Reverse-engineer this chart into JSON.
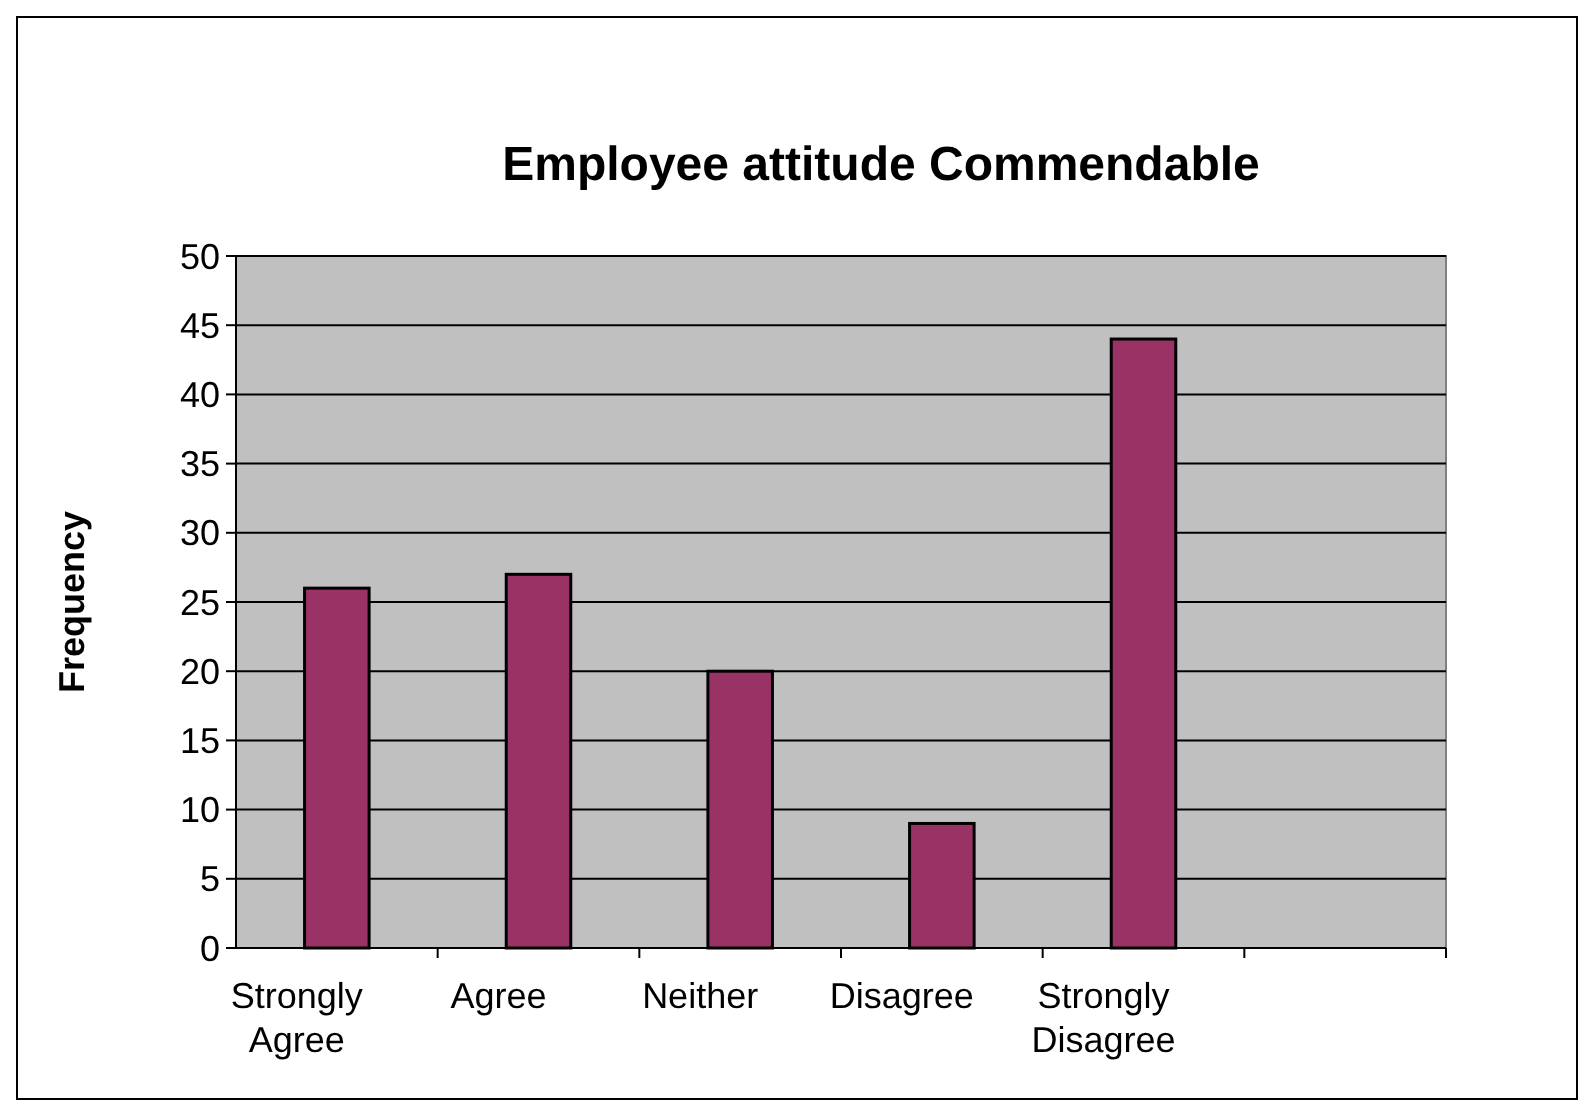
{
  "chart_data": {
    "type": "bar",
    "title": "Employee attitude Commendable",
    "ylabel": "Frequency",
    "categories": [
      "Strongly Agree",
      "Agree",
      "Neither",
      "Disagree",
      "Strongly Disagree",
      null
    ],
    "values": [
      26,
      27,
      20,
      9,
      44,
      null
    ],
    "color": "#993366",
    "ylim": [
      0,
      50
    ],
    "yticks": [
      0,
      5,
      10,
      15,
      20,
      25,
      30,
      35,
      40,
      45,
      50
    ],
    "grid": "y"
  }
}
